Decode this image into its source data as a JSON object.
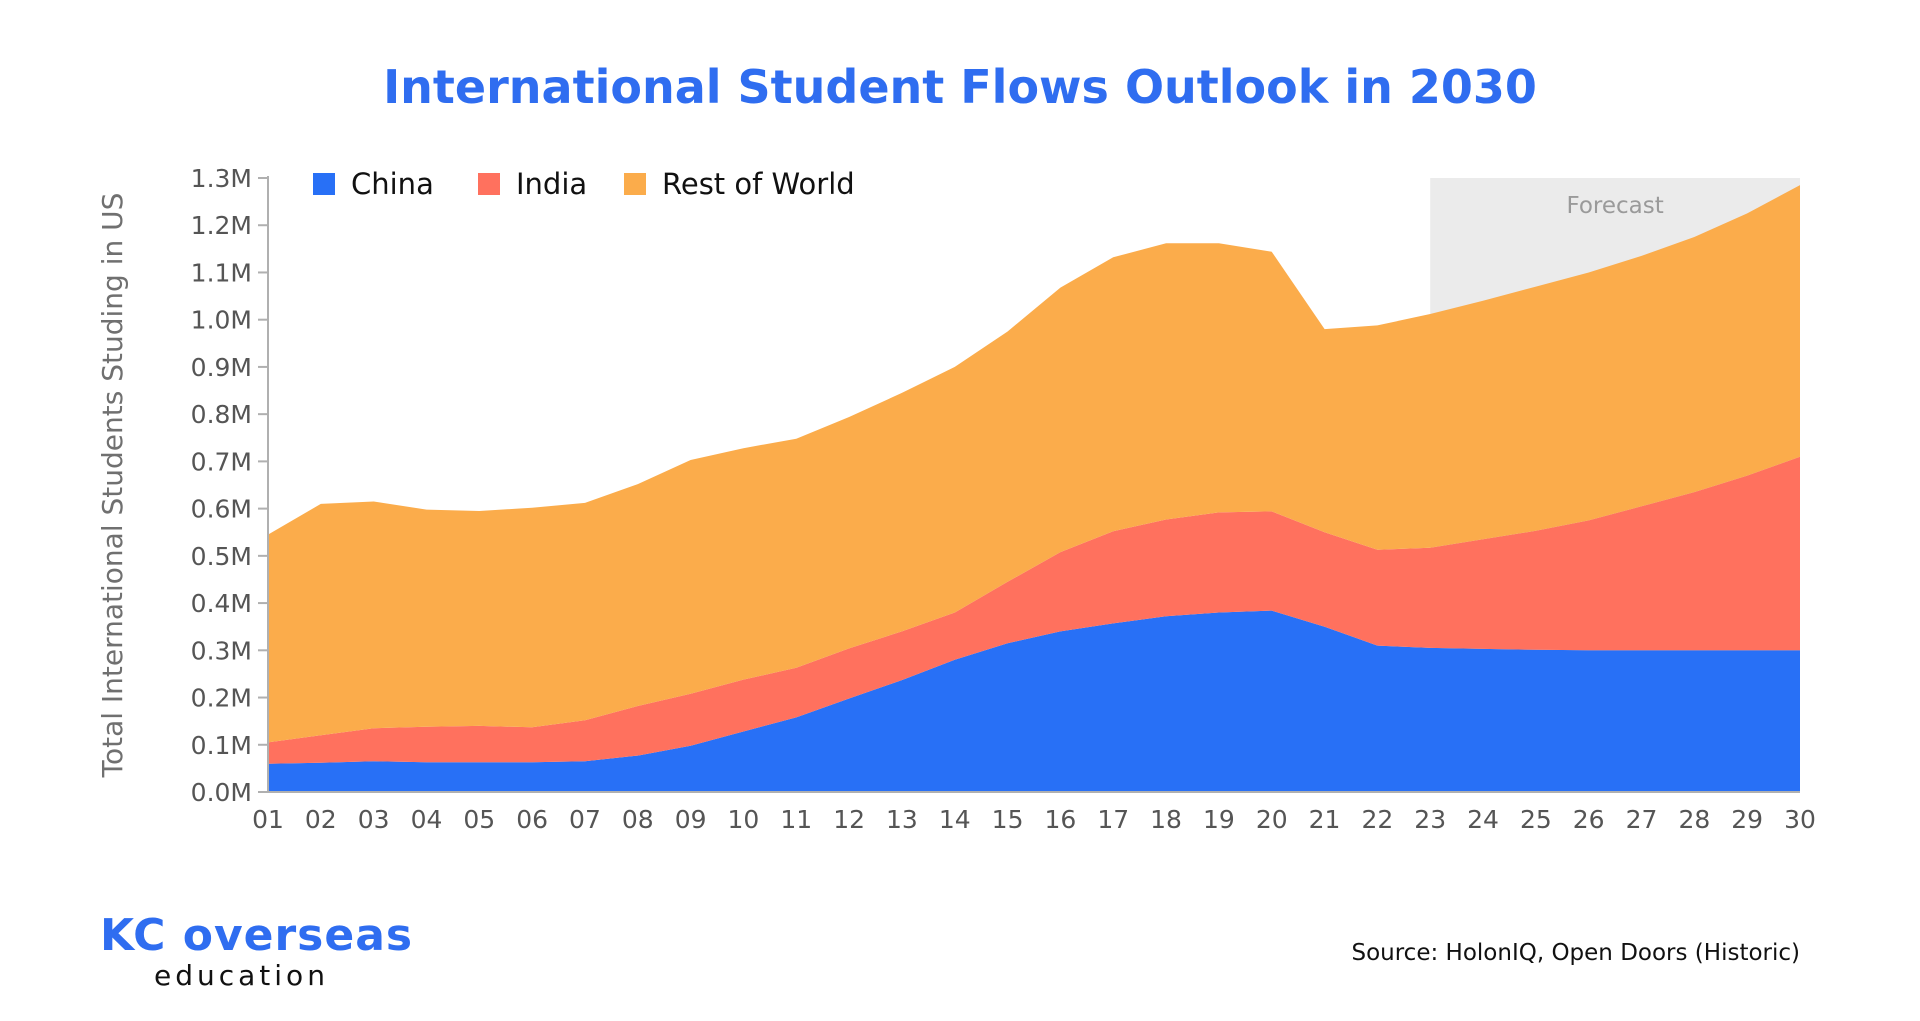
{
  "title": "International Student Flows Outlook in 2030",
  "source": "Source: HolonIQ, Open Doors (Historic)",
  "brand": {
    "name": "KC overseas",
    "sub": "education"
  },
  "chart_data": {
    "type": "area",
    "stacked": true,
    "ylabel": "Total International Students Studing in US",
    "ylim": [
      0,
      1300000
    ],
    "yticks": [
      {
        "v": 0,
        "label": "0.0M"
      },
      {
        "v": 100000,
        "label": "0.1M"
      },
      {
        "v": 200000,
        "label": "0.2M"
      },
      {
        "v": 300000,
        "label": "0.3M"
      },
      {
        "v": 400000,
        "label": "0.4M"
      },
      {
        "v": 500000,
        "label": "0.5M"
      },
      {
        "v": 600000,
        "label": "0.6M"
      },
      {
        "v": 700000,
        "label": "0.7M"
      },
      {
        "v": 800000,
        "label": "0.8M"
      },
      {
        "v": 900000,
        "label": "0.9M"
      },
      {
        "v": 1000000,
        "label": "1.0M"
      },
      {
        "v": 1100000,
        "label": "1.1M"
      },
      {
        "v": 1200000,
        "label": "1.2M"
      },
      {
        "v": 1300000,
        "label": "1.3M"
      }
    ],
    "categories": [
      "01",
      "02",
      "03",
      "04",
      "05",
      "06",
      "07",
      "08",
      "09",
      "10",
      "11",
      "12",
      "13",
      "14",
      "15",
      "16",
      "17",
      "18",
      "19",
      "20",
      "21",
      "22",
      "23",
      "24",
      "25",
      "26",
      "27",
      "28",
      "29",
      "30"
    ],
    "legend_position": "top-left",
    "forecast_label": "Forecast",
    "forecast_from": "23",
    "series": [
      {
        "name": "China",
        "color": "#2870F6",
        "values": [
          60000,
          62000,
          65000,
          63000,
          63000,
          63000,
          65000,
          77000,
          98000,
          128000,
          158000,
          198000,
          237000,
          280000,
          315000,
          340000,
          357000,
          372000,
          380000,
          384000,
          350000,
          310000,
          305000,
          303000,
          301000,
          300000,
          300000,
          300000,
          300000,
          300000
        ]
      },
      {
        "name": "India",
        "color": "#FF715E",
        "values": [
          45000,
          58000,
          70000,
          75000,
          77000,
          74000,
          87000,
          105000,
          110000,
          110000,
          105000,
          106000,
          103000,
          100000,
          130000,
          168000,
          195000,
          205000,
          212000,
          210000,
          200000,
          203000,
          212000,
          232000,
          252000,
          275000,
          305000,
          335000,
          370000,
          410000
        ]
      },
      {
        "name": "Rest of World",
        "color": "#FBAC4B",
        "values": [
          440000,
          490000,
          480000,
          460000,
          455000,
          465000,
          460000,
          470000,
          495000,
          490000,
          485000,
          490000,
          505000,
          520000,
          530000,
          560000,
          580000,
          585000,
          570000,
          550000,
          430000,
          475000,
          495000,
          505000,
          517000,
          525000,
          530000,
          540000,
          555000,
          575000
        ]
      }
    ]
  }
}
